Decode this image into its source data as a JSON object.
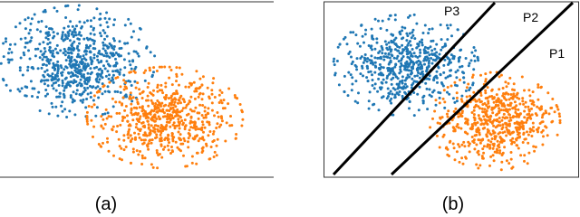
{
  "panels": [
    {
      "label": "(a)"
    },
    {
      "label": "(b)",
      "lines": [
        "P1",
        "P2",
        "P3"
      ]
    }
  ]
}
